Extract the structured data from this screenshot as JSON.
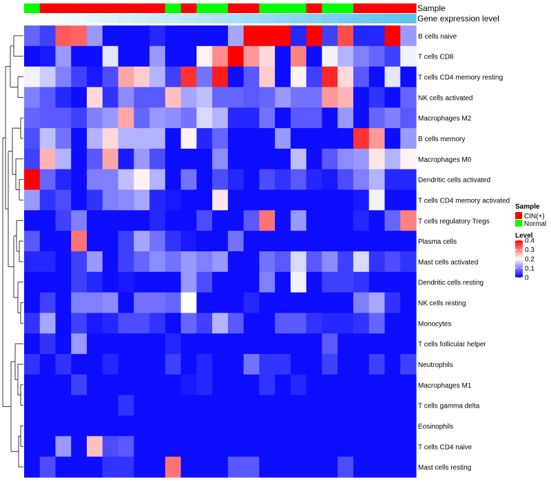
{
  "chart_data": {
    "type": "heatmap",
    "rows": [
      "B cells naive",
      "T cells CD8",
      "T cells CD4 memory resting",
      "NK cells activated",
      "Macrophages M2",
      "B cells memory",
      "Macrophages M0",
      "Dendritic cells activated",
      "T cells CD4 memory activated",
      "T cells regulatory  Tregs",
      "Plasma cells",
      "Mast cells activated",
      "Dendritic cells resting",
      "NK cells resting",
      "Monocytes",
      "T cells follicular helper",
      "Neutrophils",
      "Macrophages M1",
      "T cells gamma delta",
      "Eosinophils",
      "T cells CD4 naive",
      "Mast cells resting"
    ],
    "values": [
      [
        0.08,
        0.05,
        0.33,
        0.32,
        0.12,
        0.01,
        0.01,
        0.01,
        0.03,
        0.01,
        0.01,
        0.01,
        0.01,
        0.13,
        0.4,
        0.4,
        0.4,
        0.03,
        0.4,
        0.05,
        0.34,
        0.03,
        0.03,
        0.4,
        0.12
      ],
      [
        0.01,
        0.02,
        0.12,
        0.01,
        0.01,
        0.18,
        0.01,
        0.01,
        0.12,
        0.01,
        0.01,
        0.21,
        0.29,
        0.4,
        0.28,
        0.23,
        0.01,
        0.3,
        0.01,
        0.19,
        0.14,
        0.1,
        0.08,
        0.05,
        0.19
      ],
      [
        0.19,
        0.16,
        0.1,
        0.05,
        0.02,
        0.06,
        0.27,
        0.24,
        0.14,
        0.05,
        0.36,
        0.09,
        0.38,
        0.01,
        0.07,
        0.24,
        0.01,
        0.21,
        0.05,
        0.37,
        0.23,
        0.07,
        0.01,
        0.18,
        0.01
      ],
      [
        0.1,
        0.07,
        0.03,
        0.01,
        0.23,
        0.04,
        0.11,
        0.07,
        0.07,
        0.25,
        0.13,
        0.15,
        0.08,
        0.08,
        0.07,
        0.08,
        0.12,
        0.09,
        0.09,
        0.28,
        0.26,
        0.01,
        0.04,
        0.01,
        0.08
      ],
      [
        0.08,
        0.07,
        0.07,
        0.05,
        0.1,
        0.12,
        0.27,
        0.08,
        0.12,
        0.11,
        0.09,
        0.17,
        0.14,
        0.03,
        0.03,
        0.09,
        0.01,
        0.07,
        0.07,
        0.01,
        0.12,
        0.01,
        0.08,
        0.1,
        0.07
      ],
      [
        0.06,
        0.15,
        0.09,
        0.01,
        0.14,
        0.23,
        0.14,
        0.14,
        0.14,
        0.01,
        0.21,
        0.03,
        0.08,
        0.01,
        0.01,
        0.01,
        0.12,
        0.01,
        0.01,
        0.01,
        0.01,
        0.36,
        0.28,
        0.01,
        0.12
      ],
      [
        0.05,
        0.26,
        0.14,
        0.01,
        0.07,
        0.27,
        0.02,
        0.12,
        0.06,
        0.01,
        0.01,
        0.01,
        0.11,
        0.01,
        0.01,
        0.01,
        0.01,
        0.15,
        0.01,
        0.07,
        0.11,
        0.12,
        0.22,
        0.14,
        0.21
      ],
      [
        0.4,
        0.08,
        0.03,
        0.01,
        0.1,
        0.1,
        0.15,
        0.21,
        0.14,
        0.01,
        0.09,
        0.01,
        0.06,
        0.03,
        0.01,
        0.06,
        0.04,
        0.07,
        0.03,
        0.02,
        0.06,
        0.1,
        0.14,
        0.03,
        0.03
      ],
      [
        0.12,
        0.04,
        0.06,
        0.01,
        0.04,
        0.1,
        0.11,
        0.13,
        0.03,
        0.02,
        0.01,
        0.01,
        0.22,
        0.01,
        0.01,
        0.01,
        0.01,
        0.01,
        0.01,
        0.01,
        0.01,
        0.02,
        0.19,
        0.01,
        0.01
      ],
      [
        0.01,
        0.01,
        0.05,
        0.1,
        0.01,
        0.01,
        0.01,
        0.01,
        0.03,
        0.01,
        0.01,
        0.06,
        0.01,
        0.01,
        0.07,
        0.31,
        0.01,
        0.12,
        0.01,
        0.01,
        0.01,
        0.03,
        0.01,
        0.08,
        0.3
      ],
      [
        0.07,
        0.01,
        0.01,
        0.31,
        0.01,
        0.01,
        0.05,
        0.13,
        0.09,
        0.04,
        0.02,
        0.01,
        0.01,
        0.09,
        0.01,
        0.01,
        0.01,
        0.01,
        0.01,
        0.01,
        0.01,
        0.01,
        0.01,
        0.01,
        0.01
      ],
      [
        0.03,
        0.03,
        0.01,
        0.05,
        0.12,
        0.01,
        0.05,
        0.08,
        0.11,
        0.09,
        0.12,
        0.1,
        0.12,
        0.01,
        0.01,
        0.09,
        0.07,
        0.17,
        0.07,
        0.11,
        0.05,
        0.17,
        0.04,
        0.06,
        0.04
      ],
      [
        0.01,
        0.01,
        0.01,
        0.05,
        0.03,
        0.01,
        0.02,
        0.01,
        0.01,
        0.01,
        0.12,
        0.06,
        0.01,
        0.01,
        0.01,
        0.1,
        0.01,
        0.19,
        0.01,
        0.05,
        0.05,
        0.04,
        0.01,
        0.01,
        0.01
      ],
      [
        0.01,
        0.05,
        0.01,
        0.1,
        0.1,
        0.11,
        0.01,
        0.09,
        0.09,
        0.08,
        0.2,
        0.01,
        0.01,
        0.01,
        0.03,
        0.01,
        0.01,
        0.01,
        0.01,
        0.01,
        0.01,
        0.1,
        0.13,
        0.04,
        0.01
      ],
      [
        0.04,
        0.13,
        0.01,
        0.05,
        0.02,
        0.03,
        0.06,
        0.06,
        0.04,
        0.01,
        0.08,
        0.05,
        0.14,
        0.07,
        0.01,
        0.01,
        0.07,
        0.07,
        0.04,
        0.03,
        0.03,
        0.04,
        0.08,
        0.01,
        0.01
      ],
      [
        0.01,
        0.04,
        0.01,
        0.12,
        0.01,
        0.01,
        0.01,
        0.01,
        0.01,
        0.03,
        0.01,
        0.01,
        0.01,
        0.01,
        0.01,
        0.01,
        0.01,
        0.01,
        0.01,
        0.07,
        0.01,
        0.01,
        0.01,
        0.01,
        0.01
      ],
      [
        0.04,
        0.01,
        0.04,
        0.01,
        0.01,
        0.03,
        0.01,
        0.01,
        0.01,
        0.05,
        0.01,
        0.03,
        0.01,
        0.01,
        0.09,
        0.04,
        0.04,
        0.01,
        0.01,
        0.05,
        0.01,
        0.01,
        0.05,
        0.01,
        0.05
      ],
      [
        0.01,
        0.01,
        0.01,
        0.05,
        0.01,
        0.01,
        0.01,
        0.01,
        0.01,
        0.01,
        0.02,
        0.03,
        0.01,
        0.01,
        0.01,
        0.04,
        0.01,
        0.03,
        0.01,
        0.01,
        0.01,
        0.01,
        0.01,
        0.01,
        0.01
      ],
      [
        0.01,
        0.01,
        0.01,
        0.01,
        0.01,
        0.01,
        0.04,
        0.01,
        0.01,
        0.01,
        0.01,
        0.01,
        0.01,
        0.01,
        0.01,
        0.01,
        0.01,
        0.01,
        0.01,
        0.01,
        0.01,
        0.01,
        0.01,
        0.01,
        0.01
      ],
      [
        0.01,
        0.01,
        0.01,
        0.01,
        0.01,
        0.01,
        0.01,
        0.01,
        0.01,
        0.01,
        0.01,
        0.01,
        0.01,
        0.01,
        0.01,
        0.01,
        0.01,
        0.01,
        0.01,
        0.01,
        0.01,
        0.01,
        0.01,
        0.01,
        0.01
      ],
      [
        0.01,
        0.01,
        0.12,
        0.01,
        0.25,
        0.06,
        0.07,
        0.01,
        0.01,
        0.01,
        0.01,
        0.01,
        0.01,
        0.01,
        0.01,
        0.01,
        0.01,
        0.01,
        0.01,
        0.01,
        0.01,
        0.01,
        0.01,
        0.01,
        0.01
      ],
      [
        0.01,
        0.06,
        0.01,
        0.01,
        0.01,
        0.04,
        0.04,
        0.01,
        0.01,
        0.31,
        0.01,
        0.01,
        0.01,
        0.07,
        0.07,
        0.01,
        0.01,
        0.01,
        0.01,
        0.01,
        0.06,
        0.01,
        0.01,
        0.01,
        0.01
      ]
    ],
    "sample": [
      "Normal",
      "CIN(+)",
      "CIN(+)",
      "CIN(+)",
      "CIN(+)",
      "CIN(+)",
      "CIN(+)",
      "CIN(+)",
      "CIN(+)",
      "Normal",
      "CIN(+)",
      "Normal",
      "Normal",
      "CIN(+)",
      "CIN(+)",
      "Normal",
      "Normal",
      "Normal",
      "CIN(+)",
      "Normal",
      "Normal",
      "CIN(+)",
      "CIN(+)",
      "CIN(+)",
      "CIN(+)"
    ],
    "annotation_labels": {
      "sample": "Sample",
      "gene_expression": "Gene expression level"
    },
    "legend": {
      "sample_title": "Sample",
      "sample_items": [
        {
          "label": "CIN(+)",
          "color": "#ff0000"
        },
        {
          "label": "Normal",
          "color": "#00ff00"
        }
      ],
      "level_title": "Level",
      "level_ticks": [
        "0.4",
        "0.3",
        "0.2",
        "0.1",
        "0"
      ],
      "level_values": [
        0.4,
        0.3,
        0.2,
        0.1,
        0
      ]
    },
    "colors": {
      "low": "#0000ff",
      "mid": "#ffffff",
      "high": "#ff0000",
      "gene_bar": "#5bc3f0"
    },
    "vmin": 0,
    "vmax": 0.4,
    "dendrogram": "row clustering tree (left)"
  }
}
